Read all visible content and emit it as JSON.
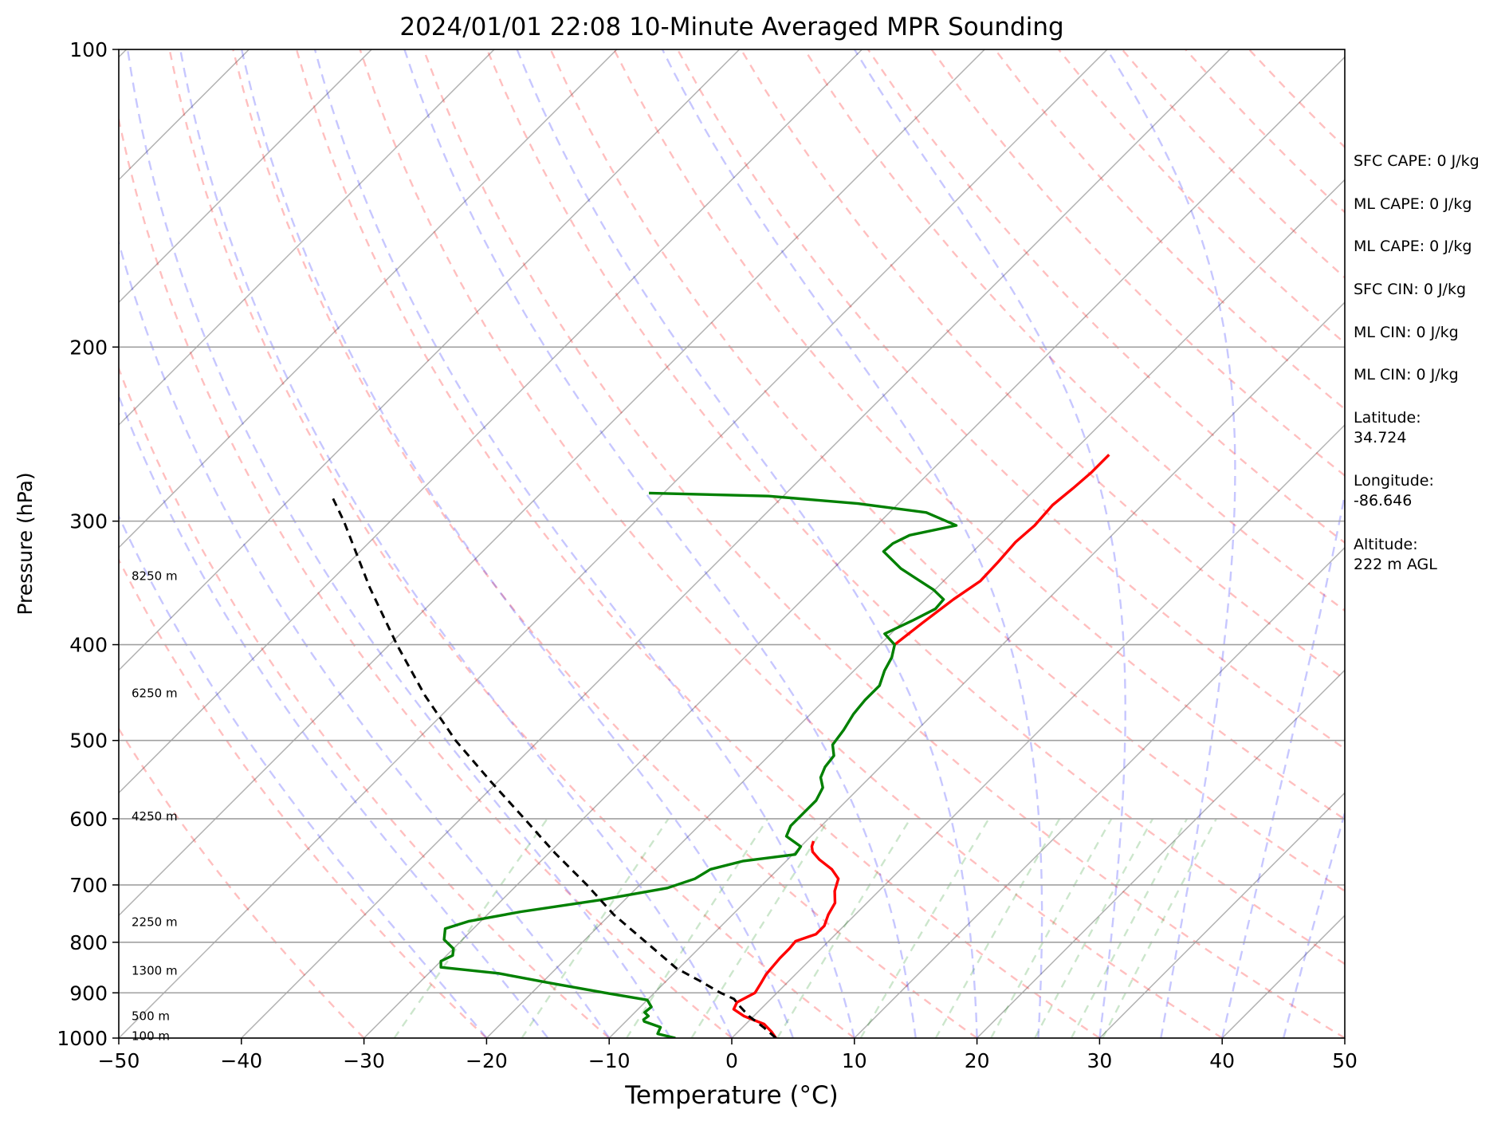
{
  "chart_data": {
    "type": "line",
    "title": "2024/01/01 22:08 10-Minute Averaged MPR Sounding",
    "xlabel": "Temperature (°C)",
    "ylabel": "Pressure (hPa)",
    "xlim": [
      -50,
      50
    ],
    "ylim": [
      1000,
      100
    ],
    "y_scale": "log",
    "skew_t": true,
    "grid": true,
    "x_ticks": [
      "−50",
      "−40",
      "−30",
      "−20",
      "−10",
      "0",
      "10",
      "20",
      "30",
      "40",
      "50"
    ],
    "y_ticks": [
      "100",
      "200",
      "300",
      "400",
      "500",
      "600",
      "700",
      "800",
      "900",
      "1000"
    ],
    "height_labels": [
      {
        "p": 995,
        "text": "100 m"
      },
      {
        "p": 950,
        "text": "500 m"
      },
      {
        "p": 855,
        "text": "1300 m"
      },
      {
        "p": 763,
        "text": "2250 m"
      },
      {
        "p": 597,
        "text": "4250 m"
      },
      {
        "p": 448,
        "text": "6250 m"
      },
      {
        "p": 341,
        "text": "8250 m"
      }
    ],
    "series": [
      {
        "color": "#ff0000",
        "role": "temperature",
        "points": [
          [
            1000,
            3.6
          ],
          [
            985,
            2.7
          ],
          [
            968,
            1.5
          ],
          [
            950,
            -0.8
          ],
          [
            935,
            -2.2
          ],
          [
            920,
            -2.5
          ],
          [
            900,
            -1.8
          ],
          [
            880,
            -2.1
          ],
          [
            862,
            -2.4
          ],
          [
            845,
            -2.5
          ],
          [
            830,
            -2.6
          ],
          [
            812,
            -2.6
          ],
          [
            798,
            -2.7
          ],
          [
            785,
            -1.6
          ],
          [
            770,
            -1.6
          ],
          [
            750,
            -2.2
          ],
          [
            730,
            -2.6
          ],
          [
            710,
            -3.6
          ],
          [
            690,
            -4.3
          ],
          [
            675,
            -5.6
          ],
          [
            660,
            -7.4
          ],
          [
            648,
            -8.6
          ],
          [
            640,
            -9.1
          ],
          [
            632,
            -9.4
          ]
        ],
        "points_upper": [
          [
            400,
            -18.8
          ],
          [
            380,
            -18.3
          ],
          [
            360,
            -17.7
          ],
          [
            345,
            -17.0
          ],
          [
            330,
            -17.1
          ],
          [
            315,
            -17.3
          ],
          [
            303,
            -17.1
          ],
          [
            289,
            -17.3
          ],
          [
            278,
            -17.0
          ],
          [
            268,
            -16.8
          ],
          [
            257,
            -16.8
          ]
        ]
      },
      {
        "color": "#008000",
        "role": "dewpoint",
        "points": [
          [
            1000,
            -4.6
          ],
          [
            990,
            -6.4
          ],
          [
            975,
            -6.7
          ],
          [
            962,
            -8.5
          ],
          [
            958,
            -8.7
          ],
          [
            950,
            -8.6
          ],
          [
            942,
            -9.2
          ],
          [
            930,
            -9.1
          ],
          [
            915,
            -10.0
          ],
          [
            900,
            -14.0
          ],
          [
            880,
            -19.2
          ],
          [
            860,
            -24.3
          ],
          [
            848,
            -29.5
          ],
          [
            836,
            -30.0
          ],
          [
            825,
            -29.5
          ],
          [
            812,
            -30.0
          ],
          [
            795,
            -31.5
          ],
          [
            775,
            -32.3
          ],
          [
            762,
            -31.0
          ],
          [
            745,
            -27.5
          ],
          [
            725,
            -22.0
          ],
          [
            705,
            -17.5
          ],
          [
            690,
            -16.0
          ],
          [
            675,
            -15.5
          ],
          [
            662,
            -13.5
          ],
          [
            652,
            -9.8
          ],
          [
            640,
            -10.0
          ],
          [
            625,
            -12.0
          ],
          [
            610,
            -12.5
          ],
          [
            595,
            -12.5
          ],
          [
            575,
            -12.5
          ],
          [
            558,
            -13.0
          ],
          [
            545,
            -14.0
          ],
          [
            532,
            -14.5
          ],
          [
            518,
            -14.7
          ],
          [
            505,
            -15.7
          ],
          [
            488,
            -16.0
          ],
          [
            470,
            -16.5
          ],
          [
            455,
            -16.7
          ],
          [
            440,
            -16.7
          ],
          [
            425,
            -17.5
          ],
          [
            412,
            -18.0
          ],
          [
            400,
            -18.8
          ],
          [
            390,
            -20.5
          ],
          [
            378,
            -19.3
          ],
          [
            368,
            -18.4
          ],
          [
            360,
            -18.5
          ],
          [
            352,
            -20.1
          ],
          [
            335,
            -24.5
          ],
          [
            322,
            -27.3
          ],
          [
            316,
            -27.2
          ],
          [
            310,
            -26.5
          ],
          [
            303,
            -23.5
          ],
          [
            294,
            -27.0
          ],
          [
            288,
            -33.3
          ],
          [
            283,
            -41.2
          ],
          [
            281,
            -51.2
          ]
        ]
      },
      {
        "color": "#000000",
        "role": "parcel",
        "dashed": true,
        "points": [
          [
            1000,
            3.6
          ],
          [
            975,
            1.7
          ],
          [
            950,
            -0.4
          ],
          [
            925,
            -2.2
          ],
          [
            913,
            -3.0
          ],
          [
            900,
            -4.6
          ],
          [
            875,
            -7.3
          ],
          [
            850,
            -10.2
          ],
          [
            800,
            -14.8
          ],
          [
            750,
            -19.7
          ],
          [
            700,
            -24.3
          ],
          [
            650,
            -29.5
          ],
          [
            600,
            -34.8
          ],
          [
            550,
            -40.6
          ],
          [
            500,
            -46.8
          ],
          [
            450,
            -53.0
          ],
          [
            400,
            -59.4
          ],
          [
            350,
            -66.3
          ],
          [
            300,
            -73.8
          ],
          [
            282,
            -77.0
          ]
        ]
      }
    ],
    "background_lines": [
      "isotherms",
      "dry adiabats",
      "moist adiabats",
      "mixing ratio lines"
    ],
    "colors": {
      "isotherm": "#aaaaaa",
      "dry_adiabat": "#ff0000",
      "moist_adiabat": "#0000ff",
      "mixing_ratio": "#008000",
      "isobar": "#a0a0a0"
    }
  },
  "info_panel": {
    "sfc_cape": "SFC CAPE: 0 J/kg",
    "ml_cape_1": "ML CAPE: 0 J/kg",
    "ml_cape_2": "ML CAPE: 0 J/kg",
    "sfc_cin": "SFC CIN: 0 J/kg",
    "ml_cin_1": "ML CIN: 0 J/kg",
    "ml_cin_2": "ML CIN: 0 J/kg",
    "latitude_label": "Latitude:",
    "latitude": "34.724",
    "longitude_label": "Longitude:",
    "longitude": "-86.646",
    "altitude_label": "Altitude:",
    "altitude": "222 m AGL"
  }
}
